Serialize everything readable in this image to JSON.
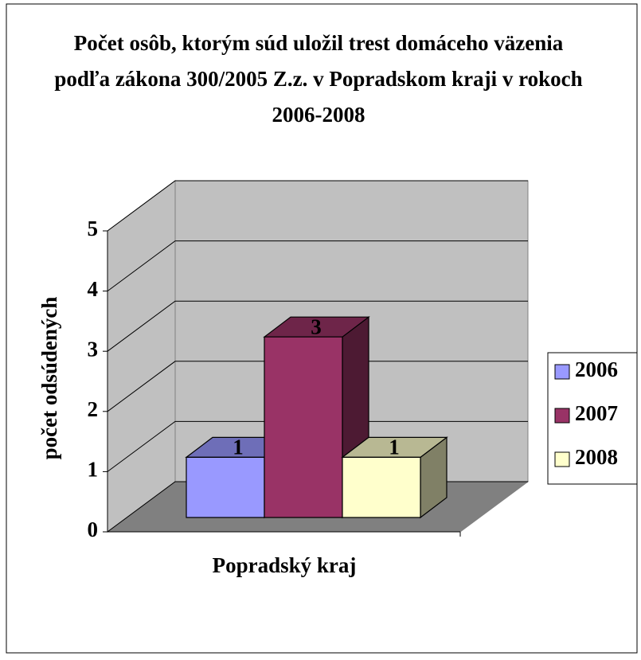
{
  "chart_data": {
    "type": "bar3d",
    "title": "Počet osôb, ktorým súd uložil trest domáceho väzenia podľa zákona 300/2005 Z.z. v Popradskom kraji v rokoch 2006-2008",
    "y_label": "počet odsúdených",
    "categories": [
      "Popradský kraj"
    ],
    "series": [
      {
        "name": "2006",
        "color": "#9999ff",
        "values": [
          1
        ]
      },
      {
        "name": "2007",
        "color": "#993366",
        "values": [
          3
        ]
      },
      {
        "name": "2008",
        "color": "#ffffcc",
        "values": [
          1
        ]
      }
    ],
    "ylim": [
      0,
      5
    ],
    "yticks": [
      0,
      1,
      2,
      3,
      4,
      5
    ],
    "grid": true,
    "legend": "right"
  }
}
